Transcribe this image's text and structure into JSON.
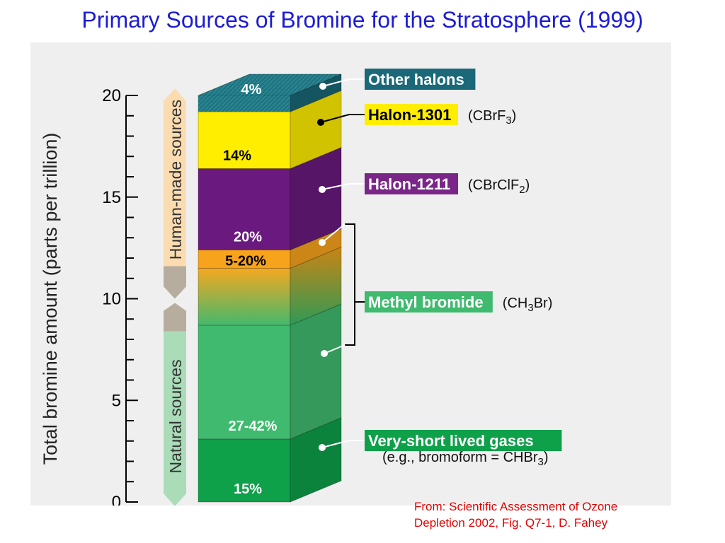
{
  "page": {
    "title": "Primary Sources of Bromine for the Stratosphere (1999)",
    "citation_line1": "From: Scientific Assessment of Ozone",
    "citation_line2": "Depletion 2002, Fig. Q7-1, D. Fahey"
  },
  "chart_data": {
    "type": "bar",
    "stacked": true,
    "title": "",
    "ylabel": "Total bromine amount (parts per trillion)",
    "ylim": [
      0,
      20
    ],
    "yticks": [
      0,
      5,
      10,
      15,
      20
    ],
    "grid": false,
    "source_groups": [
      {
        "name": "Human-made sources",
        "range": [
          11.3,
          20
        ]
      },
      {
        "name": "Natural sources",
        "range": [
          0,
          8.7
        ]
      }
    ],
    "segments": [
      {
        "key": "very-short-lived",
        "name": "Very-short lived gases",
        "formula_pre": "(e.g., bromoform = CHBr",
        "formula_sub": "3",
        "formula_post": ")",
        "pct_label": "15%",
        "start": 0,
        "end": 3.1,
        "color": "#0fa04a"
      },
      {
        "key": "methyl-bromide-natural",
        "name": "Methyl bromide",
        "formula_pre": "(CH",
        "formula_sub": "3",
        "formula_post": "Br)",
        "pct_label": "27-42%",
        "start": 3.1,
        "end": 8.7,
        "color": "#3fba6e"
      },
      {
        "key": "methyl-bromide-uncertain",
        "name": "Methyl bromide",
        "pct_label": "",
        "start": 8.7,
        "end": 11.5,
        "color": "#a0b23a"
      },
      {
        "key": "methyl-bromide-human",
        "name": "Methyl bromide",
        "pct_label": "5-20%",
        "start": 11.5,
        "end": 12.4,
        "color": "#f7a41c"
      },
      {
        "key": "halon-1211",
        "name": "Halon-1211",
        "formula_pre": "(CBrClF",
        "formula_sub": "2",
        "formula_post": ")",
        "pct_label": "20%",
        "start": 12.4,
        "end": 16.4,
        "color": "#6a1a7e"
      },
      {
        "key": "halon-1301",
        "name": "Halon-1301",
        "formula_pre": "(CBrF",
        "formula_sub": "3",
        "formula_post": ")",
        "pct_label": "14%",
        "start": 16.4,
        "end": 19.2,
        "color": "#ffee00"
      },
      {
        "key": "other-halons",
        "name": "Other halons",
        "pct_label": "4%",
        "start": 19.2,
        "end": 20,
        "color": "#1a6878"
      }
    ],
    "legend_labels": [
      {
        "key": "other-halons",
        "text": "Other halons",
        "bg": "#1a6878",
        "fg": "#ffffff",
        "formula_pre": "",
        "formula_sub": "",
        "formula_post": ""
      },
      {
        "key": "halon-1301",
        "text": "Halon-1301",
        "bg": "#ffee00",
        "fg": "#000000",
        "formula_pre": "(CBrF",
        "formula_sub": "3",
        "formula_post": ")"
      },
      {
        "key": "halon-1211",
        "text": "Halon-1211",
        "bg": "#7a2688",
        "fg": "#ffffff",
        "formula_pre": "(CBrClF",
        "formula_sub": "2",
        "formula_post": ")"
      },
      {
        "key": "methyl-bromide",
        "text": "Methyl bromide",
        "bg": "#3fba6e",
        "fg": "#ffffff",
        "formula_pre": "(CH",
        "formula_sub": "3",
        "formula_post": "Br)"
      },
      {
        "key": "very-short-lived",
        "text": "Very-short lived gases",
        "bg": "#0fa04a",
        "fg": "#ffffff",
        "formula_pre": "",
        "formula_sub": "",
        "formula_post": ""
      }
    ],
    "example_note": {
      "pre": "(e.g., bromoform = CHBr",
      "sub": "3",
      "post": ")"
    }
  }
}
